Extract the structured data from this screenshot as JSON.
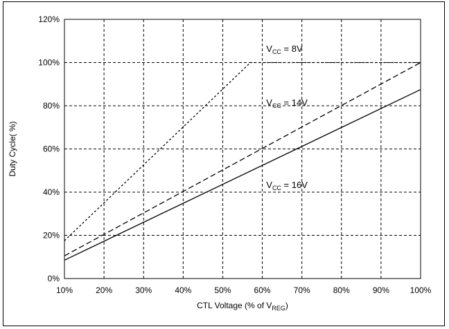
{
  "chart_data": {
    "type": "line",
    "xlabel": {
      "main": "CTL Voltage (% of V",
      "sub": "REG",
      "tail": ")"
    },
    "ylabel": "Duty Cycle( %)",
    "xlim": [
      10,
      100
    ],
    "ylim": [
      0,
      120
    ],
    "x_ticks": [
      "10%",
      "20%",
      "30%",
      "40%",
      "50%",
      "60%",
      "70%",
      "80%",
      "90%",
      "100%"
    ],
    "y_ticks": [
      "0%",
      "20%",
      "40%",
      "60%",
      "80%",
      "100%",
      "120%"
    ],
    "grid": true,
    "series": [
      {
        "name": "V_CC = 8V",
        "label_main": "V",
        "label_sub": "CC",
        "label_tail": " = 8V",
        "style": "short-dash",
        "x": [
          10,
          57,
          100
        ],
        "y": [
          17.5,
          100,
          100
        ]
      },
      {
        "name": "V_CC = 14V",
        "label_main": "V",
        "label_sub": "CC",
        "label_tail": " = 14V",
        "style": "long-dash",
        "x": [
          10,
          100
        ],
        "y": [
          10.5,
          100
        ]
      },
      {
        "name": "V_CC = 16V",
        "label_main": "V",
        "label_sub": "CC",
        "label_tail": " = 16V",
        "style": "solid",
        "x": [
          10,
          100
        ],
        "y": [
          8.5,
          87.5
        ]
      }
    ]
  }
}
